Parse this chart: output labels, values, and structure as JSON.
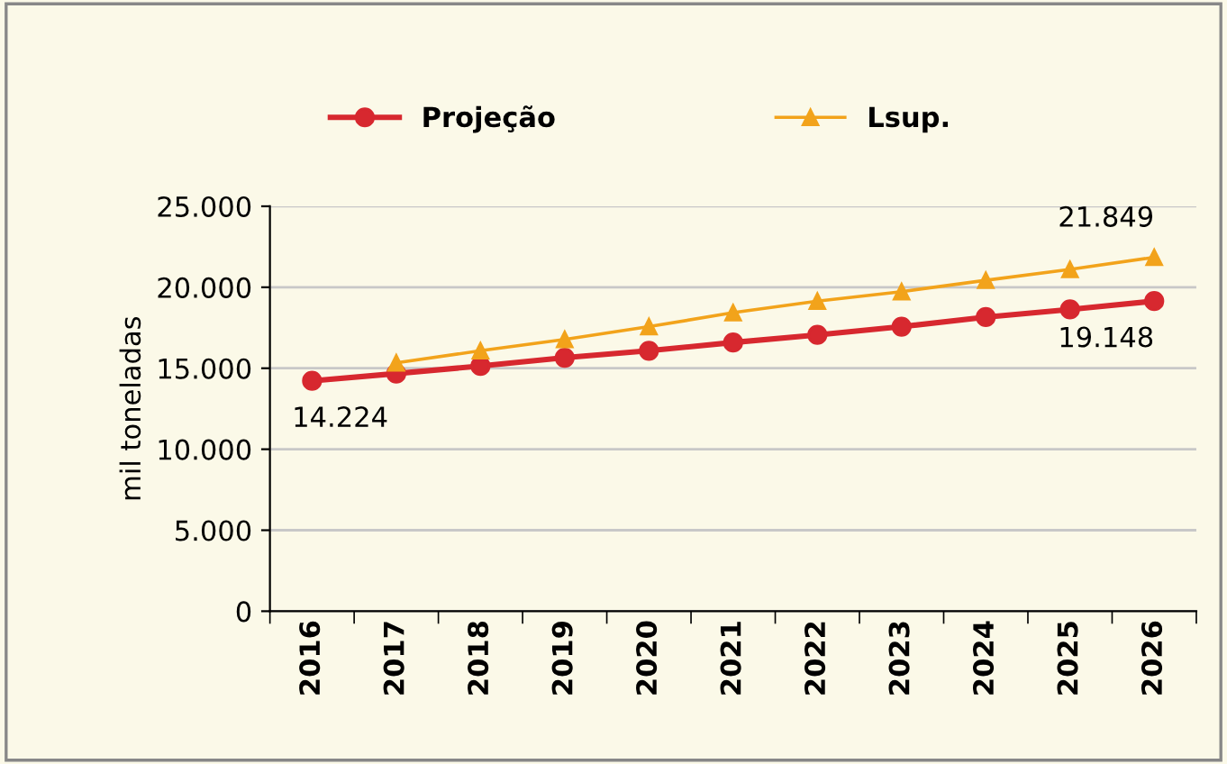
{
  "chart_data": {
    "type": "line",
    "ylabel": "mil toneladas",
    "categories": [
      "2016",
      "2017",
      "2018",
      "2019",
      "2020",
      "2021",
      "2022",
      "2023",
      "2024",
      "2025",
      "2026"
    ],
    "series": [
      {
        "name": "Projeção",
        "color": "#d7282f",
        "marker": "circle",
        "values": [
          14224,
          14670,
          15140,
          15650,
          16080,
          16590,
          17060,
          17570,
          18160,
          18630,
          19148
        ],
        "value_labels": [
          "14.224",
          null,
          null,
          null,
          null,
          null,
          null,
          null,
          null,
          null,
          "19.148"
        ]
      },
      {
        "name": "Lsup.",
        "color": "#f2a31b",
        "marker": "triangle",
        "values": [
          null,
          15330,
          16080,
          16780,
          17570,
          18430,
          19140,
          19730,
          20430,
          21100,
          21849
        ],
        "value_labels": [
          null,
          null,
          null,
          null,
          null,
          null,
          null,
          null,
          null,
          null,
          "21.849"
        ]
      }
    ],
    "ylim": [
      0,
      25000
    ],
    "yticks": [
      {
        "value": 0,
        "label": "0"
      },
      {
        "value": 5000,
        "label": "5.000"
      },
      {
        "value": 10000,
        "label": "10.000"
      },
      {
        "value": 15000,
        "label": "15.000"
      },
      {
        "value": 20000,
        "label": "20.000"
      },
      {
        "value": 25000,
        "label": "25.000"
      }
    ],
    "grid": "y",
    "legend": "top"
  }
}
